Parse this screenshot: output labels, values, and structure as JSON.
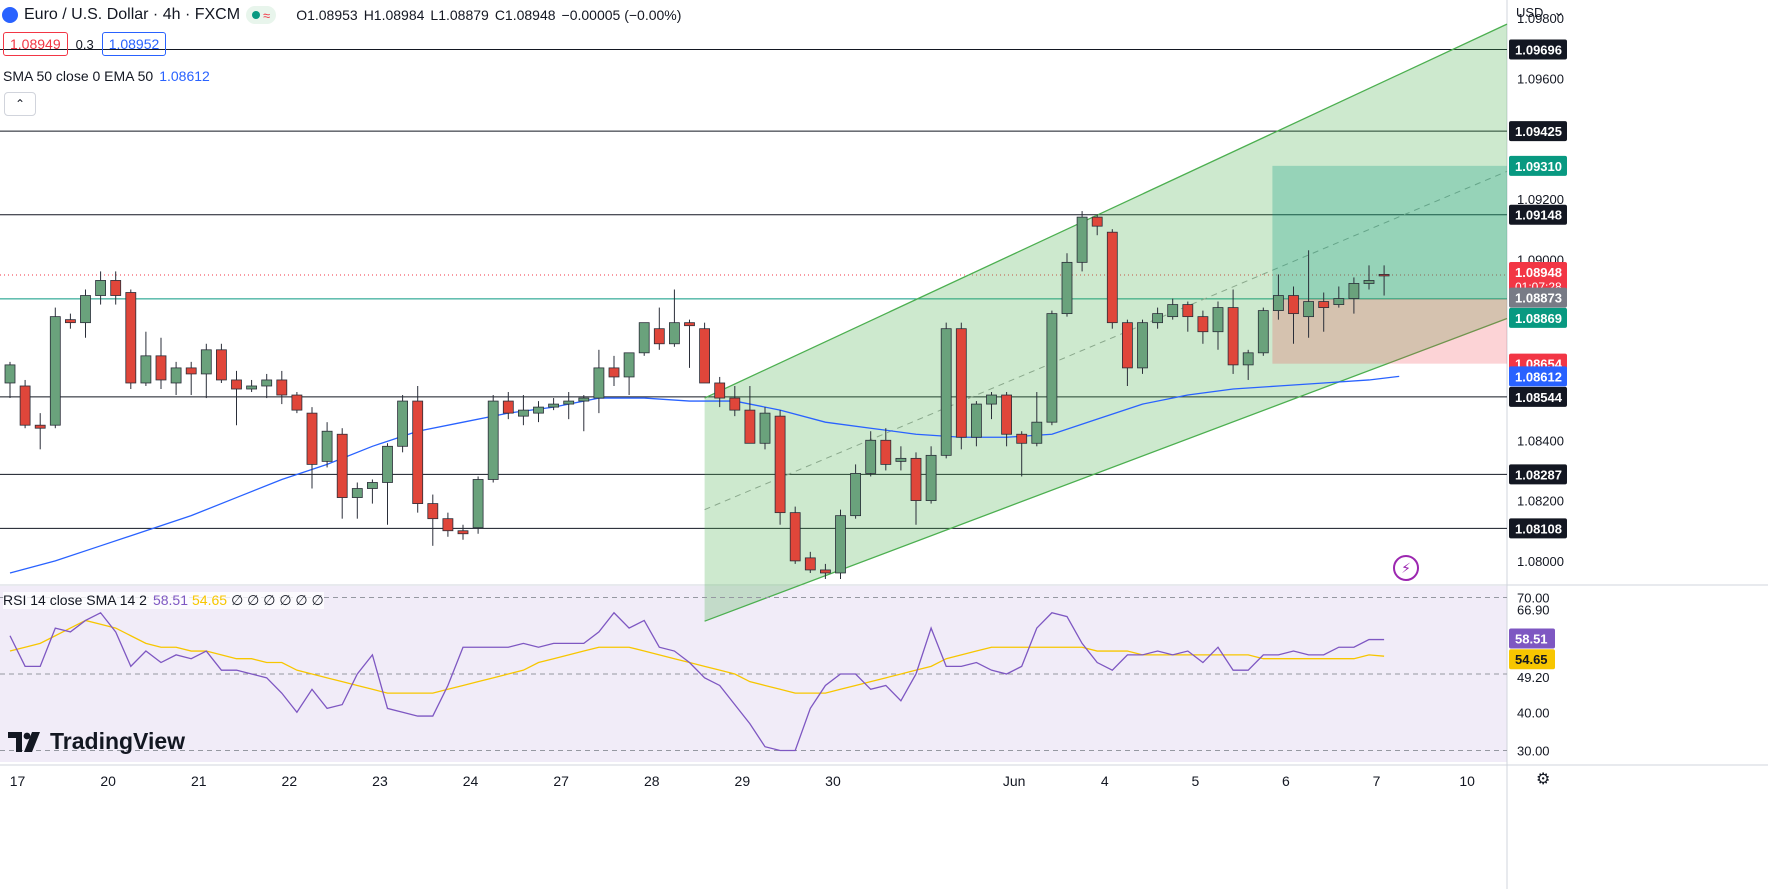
{
  "header": {
    "symbol_title": "Euro / U.S. Dollar · 4h · FXCM",
    "wave_glyph": "≈",
    "open": "O1.08953",
    "high": "H1.08984",
    "low": "L1.08879",
    "close": "C1.08948",
    "change": "−0.00005 (−0.00%)",
    "sell_price": "1.08949",
    "spread": "0.3",
    "buy_price": "1.08952"
  },
  "indicator": {
    "label": "SMA 50 close 0 EMA 50",
    "value": "1.08612"
  },
  "rsi_legend": {
    "label": "RSI 14 close SMA 14 2",
    "rsi": "58.51",
    "sma": "54.65",
    "zeros": "∅ ∅ ∅ ∅ ∅ ∅"
  },
  "branding": {
    "logo_text": "TradingView"
  },
  "toolbar": {
    "currency": "USD",
    "currency_caret": "⌄",
    "collapse_glyph": "⌃",
    "lightning_glyph": "⚡",
    "gear_glyph": "⚙"
  },
  "colors": {
    "bull": "#6aa27c",
    "bear": "#e0463a",
    "sma": "#2962ff",
    "rsi": "#7e57c2",
    "rsi_sma": "#f7c600",
    "channel": "#4caf50"
  },
  "chart_data": {
    "type": "candlestick",
    "price_axis_ticks": [
      "1.09800",
      "1.09600",
      "1.09200",
      "1.09000",
      "1.08400",
      "1.08200",
      "1.08000"
    ],
    "x_ticks": [
      {
        "label": "17",
        "i": 0.5
      },
      {
        "label": "20",
        "i": 6.5
      },
      {
        "label": "21",
        "i": 12.5
      },
      {
        "label": "22",
        "i": 18.5
      },
      {
        "label": "23",
        "i": 24.5
      },
      {
        "label": "24",
        "i": 30.5
      },
      {
        "label": "27",
        "i": 36.5
      },
      {
        "label": "28",
        "i": 42.5
      },
      {
        "label": "29",
        "i": 48.5
      },
      {
        "label": "30",
        "i": 54.5
      },
      {
        "label": "Jun",
        "i": 66.5
      },
      {
        "label": "4",
        "i": 72.5
      },
      {
        "label": "5",
        "i": 78.5
      },
      {
        "label": "6",
        "i": 84.5
      },
      {
        "label": "7",
        "i": 90.5
      },
      {
        "label": "10",
        "i": 96.5
      }
    ],
    "candles": [
      [
        1.0859,
        1.0866,
        1.0854,
        1.0865
      ],
      [
        1.0858,
        1.086,
        1.0844,
        1.0845
      ],
      [
        1.0845,
        1.0849,
        1.0837,
        1.0844
      ],
      [
        1.0845,
        1.0884,
        1.0844,
        1.0881
      ],
      [
        1.088,
        1.0882,
        1.0877,
        1.0879
      ],
      [
        1.0879,
        1.089,
        1.0874,
        1.0888
      ],
      [
        1.0888,
        1.0896,
        1.0885,
        1.0893
      ],
      [
        1.0893,
        1.0896,
        1.0885,
        1.0888
      ],
      [
        1.0889,
        1.089,
        1.0857,
        1.0859
      ],
      [
        1.0859,
        1.0876,
        1.0858,
        1.0868
      ],
      [
        1.0868,
        1.0874,
        1.0857,
        1.086
      ],
      [
        1.0859,
        1.0866,
        1.0855,
        1.0864
      ],
      [
        1.0864,
        1.0866,
        1.0855,
        1.0862
      ],
      [
        1.0862,
        1.0872,
        1.0854,
        1.087
      ],
      [
        1.087,
        1.0872,
        1.0859,
        1.086
      ],
      [
        1.086,
        1.0863,
        1.0845,
        1.0857
      ],
      [
        1.0857,
        1.086,
        1.0856,
        1.0858
      ],
      [
        1.0858,
        1.0862,
        1.0854,
        1.086
      ],
      [
        1.086,
        1.0863,
        1.0852,
        1.0855
      ],
      [
        1.0855,
        1.0856,
        1.0849,
        1.085
      ],
      [
        1.0849,
        1.0851,
        1.0824,
        1.0832
      ],
      [
        1.0833,
        1.0846,
        1.0831,
        1.0843
      ],
      [
        1.0842,
        1.0844,
        1.0814,
        1.0821
      ],
      [
        1.0821,
        1.0826,
        1.0814,
        1.0824
      ],
      [
        1.0824,
        1.0827,
        1.0819,
        1.0826
      ],
      [
        1.0826,
        1.0839,
        1.0812,
        1.0838
      ],
      [
        1.0838,
        1.0855,
        1.0836,
        1.0853
      ],
      [
        1.0853,
        1.0858,
        1.0816,
        1.0819
      ],
      [
        1.0819,
        1.0822,
        1.0805,
        1.0814
      ],
      [
        1.0814,
        1.0816,
        1.0808,
        1.081
      ],
      [
        1.081,
        1.0812,
        1.0807,
        1.0809
      ],
      [
        1.0811,
        1.0828,
        1.0809,
        1.0827
      ],
      [
        1.0827,
        1.0855,
        1.0826,
        1.0853
      ],
      [
        1.0853,
        1.0856,
        1.0847,
        1.0849
      ],
      [
        1.0848,
        1.0855,
        1.0845,
        1.085
      ],
      [
        1.0849,
        1.0853,
        1.0846,
        1.0851
      ],
      [
        1.0851,
        1.0854,
        1.085,
        1.0852
      ],
      [
        1.0852,
        1.0856,
        1.0847,
        1.0853
      ],
      [
        1.0853,
        1.0855,
        1.0843,
        1.0854
      ],
      [
        1.0854,
        1.087,
        1.0849,
        1.0864
      ],
      [
        1.0864,
        1.0868,
        1.0858,
        1.0861
      ],
      [
        1.0861,
        1.0868,
        1.0855,
        1.0869
      ],
      [
        1.0869,
        1.0879,
        1.0868,
        1.0879
      ],
      [
        1.0877,
        1.0884,
        1.087,
        1.0872
      ],
      [
        1.0872,
        1.089,
        1.0871,
        1.0879
      ],
      [
        1.0879,
        1.088,
        1.0864,
        1.0878
      ],
      [
        1.0877,
        1.0879,
        1.0859,
        1.0859
      ],
      [
        1.0859,
        1.0861,
        1.0851,
        1.0854
      ],
      [
        1.0854,
        1.0858,
        1.0848,
        1.085
      ],
      [
        1.085,
        1.0858,
        1.084,
        1.0839
      ],
      [
        1.0839,
        1.0851,
        1.0837,
        1.0849
      ],
      [
        1.0848,
        1.085,
        1.0812,
        1.0816
      ],
      [
        1.0816,
        1.0818,
        1.0799,
        1.08
      ],
      [
        1.0801,
        1.0803,
        1.0796,
        1.0797
      ],
      [
        1.0797,
        1.0799,
        1.0794,
        1.0796
      ],
      [
        1.0796,
        1.0817,
        1.0794,
        1.0815
      ],
      [
        1.0815,
        1.0832,
        1.0814,
        1.0829
      ],
      [
        1.0829,
        1.0843,
        1.0828,
        1.084
      ],
      [
        1.084,
        1.0844,
        1.083,
        1.0832
      ],
      [
        1.0833,
        1.0838,
        1.083,
        1.0834
      ],
      [
        1.0834,
        1.0836,
        1.0812,
        1.082
      ],
      [
        1.082,
        1.0838,
        1.0819,
        1.0835
      ],
      [
        1.0835,
        1.0879,
        1.0834,
        1.0877
      ],
      [
        1.0877,
        1.0879,
        1.0837,
        1.0841
      ],
      [
        1.0841,
        1.0853,
        1.0838,
        1.0852
      ],
      [
        1.0852,
        1.0856,
        1.0847,
        1.0855
      ],
      [
        1.0855,
        1.0856,
        1.0838,
        1.0842
      ],
      [
        1.0842,
        1.0843,
        1.0828,
        1.0839
      ],
      [
        1.0839,
        1.0856,
        1.0838,
        1.0846
      ],
      [
        1.0846,
        1.0883,
        1.0845,
        1.0882
      ],
      [
        1.0882,
        1.0902,
        1.0881,
        1.0899
      ],
      [
        1.0899,
        1.0916,
        1.0896,
        1.0914
      ],
      [
        1.0914,
        1.0915,
        1.0908,
        1.0911
      ],
      [
        1.0909,
        1.091,
        1.0877,
        1.0879
      ],
      [
        1.0879,
        1.088,
        1.0858,
        1.0864
      ],
      [
        1.0864,
        1.088,
        1.0862,
        1.0879
      ],
      [
        1.0879,
        1.0884,
        1.0877,
        1.0882
      ],
      [
        1.0881,
        1.0887,
        1.088,
        1.0885
      ],
      [
        1.0885,
        1.0886,
        1.0876,
        1.0881
      ],
      [
        1.0881,
        1.0883,
        1.0872,
        1.0876
      ],
      [
        1.0876,
        1.0886,
        1.087,
        1.0884
      ],
      [
        1.0884,
        1.089,
        1.0862,
        1.0865
      ],
      [
        1.0865,
        1.087,
        1.086,
        1.0869
      ],
      [
        1.0869,
        1.0884,
        1.0868,
        1.0883
      ],
      [
        1.0883,
        1.0895,
        1.088,
        1.0888
      ],
      [
        1.0888,
        1.0891,
        1.0872,
        1.0882
      ],
      [
        1.0881,
        1.0903,
        1.0874,
        1.0886
      ],
      [
        1.0886,
        1.0889,
        1.0876,
        1.0884
      ],
      [
        1.0885,
        1.0891,
        1.0884,
        1.0887
      ],
      [
        1.0887,
        1.0894,
        1.0882,
        1.0892
      ],
      [
        1.0892,
        1.0898,
        1.089,
        1.0893
      ],
      [
        1.0895,
        1.0898,
        1.0888,
        1.08948
      ]
    ],
    "sma": [
      [
        0,
        1.0796
      ],
      [
        3,
        1.08
      ],
      [
        6,
        1.0805
      ],
      [
        9,
        1.081
      ],
      [
        12,
        1.0815
      ],
      [
        15,
        1.0821
      ],
      [
        18,
        1.0827
      ],
      [
        21,
        1.0832
      ],
      [
        24,
        1.0838
      ],
      [
        27,
        1.0843
      ],
      [
        30,
        1.0846
      ],
      [
        33,
        1.0849
      ],
      [
        36,
        1.0851
      ],
      [
        39,
        1.0854
      ],
      [
        42,
        1.0854
      ],
      [
        45,
        1.0853
      ],
      [
        48,
        1.0853
      ],
      [
        51,
        1.085
      ],
      [
        54,
        1.0846
      ],
      [
        57,
        1.0844
      ],
      [
        60,
        1.0842
      ],
      [
        63,
        1.0841
      ],
      [
        66,
        1.0841
      ],
      [
        69,
        1.0842
      ],
      [
        72,
        1.0847
      ],
      [
        75,
        1.0852
      ],
      [
        78,
        1.0855
      ],
      [
        81,
        1.0857
      ],
      [
        84,
        1.0858
      ],
      [
        87,
        1.0859
      ],
      [
        90,
        1.086
      ],
      [
        92,
        1.08612
      ]
    ],
    "horizontal_levels": [
      {
        "price": 1.09696,
        "label": "1.09696"
      },
      {
        "price": 1.09425,
        "label": "1.09425"
      },
      {
        "price": 1.09148,
        "label": "1.09148"
      },
      {
        "price": 1.08544,
        "label": "1.08544"
      },
      {
        "price": 1.08287,
        "label": "1.08287"
      },
      {
        "price": 1.08108,
        "label": "1.08108"
      }
    ],
    "marker_labels": [
      {
        "price": 1.0931,
        "label": "1.09310",
        "bg": "#089981",
        "fg": "#ffffff"
      },
      {
        "price": 1.08948,
        "label": "1.08948",
        "sub": "01:07:28",
        "bg": "#f23645",
        "fg": "#ffffff"
      },
      {
        "price": 1.08873,
        "label": "1.08873",
        "bg": "#787b86",
        "fg": "#ffffff"
      },
      {
        "price": 1.08869,
        "label": "1.08869",
        "bg": "#089981",
        "fg": "#ffffff"
      },
      {
        "price": 1.08654,
        "label": "1.08654",
        "bg": "#f23645",
        "fg": "#ffffff"
      },
      {
        "price": 1.08612,
        "label": "1.08612",
        "bg": "#2962ff",
        "fg": "#ffffff"
      }
    ],
    "channel": {
      "i_start": 46,
      "i_end": 100,
      "upper_start": 1.0854,
      "upper_end": 1.098,
      "lower_start": 1.078,
      "lower_end": 1.0882,
      "mid_start": 1.0817,
      "mid_end": 1.0931
    },
    "position": {
      "i_start": 84,
      "i_end": 100,
      "entry": 1.08869,
      "target": 1.0931,
      "stop": 1.08654
    },
    "rsi": {
      "axis_ticks": [
        "70.00",
        "66.90",
        "49.20",
        "40.00",
        "30.00"
      ],
      "levels": [
        70,
        50,
        30
      ],
      "rsi": [
        60,
        52,
        52,
        62,
        61,
        64,
        66,
        61,
        52,
        56,
        53,
        55,
        54,
        56,
        51,
        51,
        50,
        49,
        45,
        40,
        46,
        41,
        42,
        50,
        55,
        41,
        40,
        39,
        39,
        47,
        57,
        57,
        57,
        57,
        58,
        57,
        58,
        58,
        58,
        61,
        66,
        62,
        64,
        57,
        56,
        53,
        49,
        47,
        42,
        37,
        31,
        30,
        30,
        41,
        47,
        50,
        50,
        46,
        47,
        43,
        50,
        62,
        52,
        52,
        53,
        51,
        50,
        52,
        62,
        66,
        65,
        58,
        53,
        51,
        55,
        55,
        56,
        55,
        56,
        53,
        57,
        51,
        51,
        55,
        55,
        56,
        55,
        55,
        57,
        57,
        59,
        59
      ],
      "sma": [
        56,
        57,
        58,
        60,
        62,
        64,
        63,
        62,
        60,
        58,
        57,
        57,
        56,
        56,
        55,
        54,
        54,
        53,
        53,
        51,
        50,
        49,
        48,
        47,
        46,
        45,
        45,
        45,
        45,
        46,
        47,
        48,
        49,
        50,
        51,
        53,
        54,
        55,
        56,
        57,
        57,
        57,
        56,
        55,
        54,
        53,
        52,
        51,
        50,
        48,
        47,
        46,
        45,
        45,
        45,
        46,
        47,
        48,
        49,
        50,
        51,
        52,
        54,
        55,
        56,
        57,
        57,
        57,
        57,
        57,
        57,
        57,
        56,
        56,
        56,
        55,
        55,
        55,
        55,
        55,
        55,
        55,
        55,
        54,
        54,
        54,
        54,
        54,
        54,
        54,
        55,
        54.65
      ],
      "rsi_label": "58.51",
      "sma_label": "54.65"
    },
    "price_range": [
      1.0793,
      1.0986
    ],
    "rsi_range": [
      27,
      73
    ]
  }
}
